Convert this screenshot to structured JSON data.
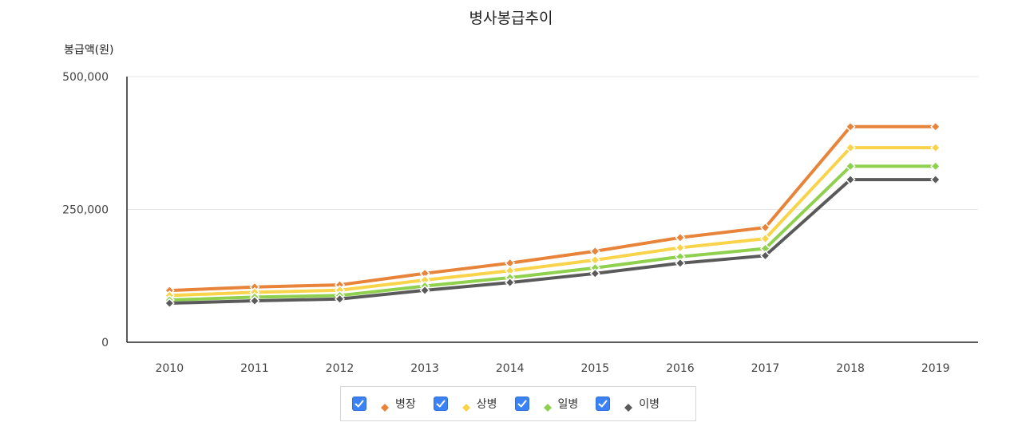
{
  "chart_data": {
    "type": "line",
    "title": "병사봉급추이",
    "ylabel": "봉급액(원)",
    "xlabel": "",
    "categories": [
      "2010",
      "2011",
      "2012",
      "2013",
      "2014",
      "2015",
      "2016",
      "2017",
      "2018",
      "2019"
    ],
    "ylim": [
      0,
      500000
    ],
    "yticks": [
      "0",
      "250,000",
      "500,000"
    ],
    "ytick_values": [
      0,
      250000,
      500000
    ],
    "grid": true,
    "legend_position": "bottom",
    "series": [
      {
        "name": "병장",
        "color": "#e8833a",
        "values": [
          97500,
          104000,
          108000,
          129600,
          149000,
          171400,
          197000,
          216000,
          405700,
          405700
        ]
      },
      {
        "name": "상병",
        "color": "#f9d34a",
        "values": [
          88000,
          94000,
          98000,
          117100,
          134600,
          154800,
          178000,
          195000,
          366200,
          366200
        ]
      },
      {
        "name": "일병",
        "color": "#8fd14f",
        "values": [
          79500,
          85000,
          88000,
          105800,
          121700,
          140000,
          161000,
          176400,
          331300,
          331300
        ]
      },
      {
        "name": "이병",
        "color": "#5a5a5a",
        "values": [
          73500,
          78000,
          81500,
          97800,
          112500,
          129400,
          148800,
          163000,
          306100,
          306100
        ]
      }
    ]
  }
}
